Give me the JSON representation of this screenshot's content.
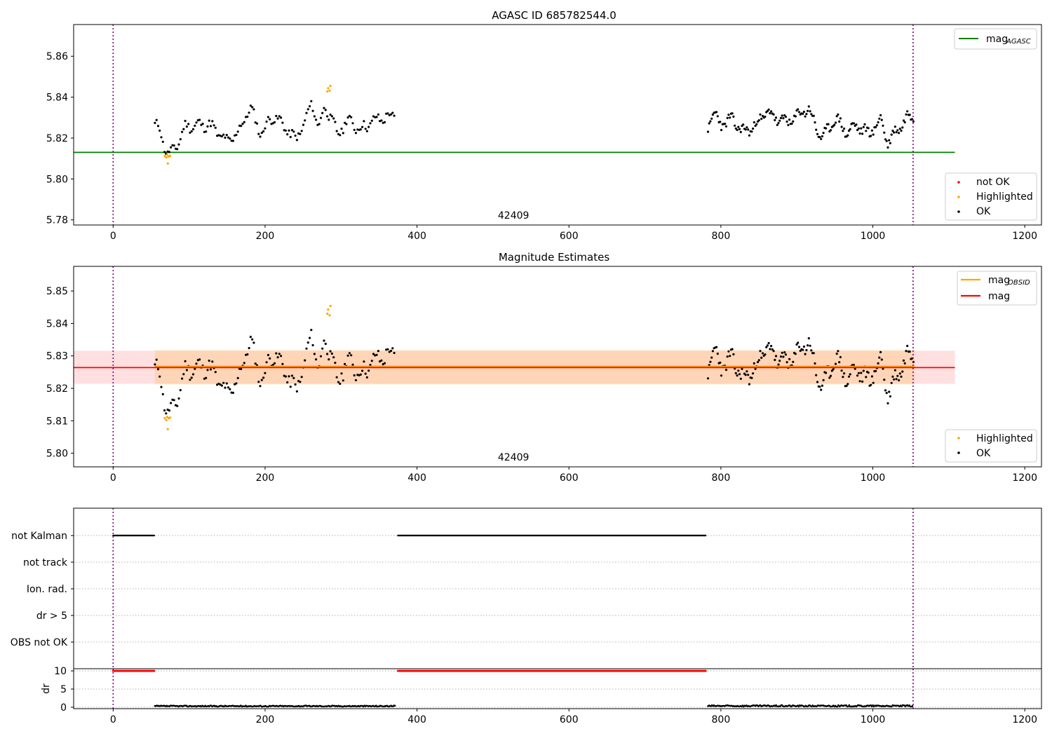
{
  "chart_data": [
    {
      "type": "scatter",
      "title": "AGASC ID 685782544.0",
      "xlim": [
        -52,
        1222
      ],
      "ylim": [
        5.7775,
        5.8755
      ],
      "xticks": [
        0,
        200,
        400,
        600,
        800,
        1000,
        1200
      ],
      "yticks": [
        5.78,
        5.8,
        5.82,
        5.84,
        5.86
      ],
      "ytick_labels": [
        "5.78",
        "5.80",
        "5.82",
        "5.84",
        "5.86"
      ],
      "vlines": [
        0,
        1053
      ],
      "obsid_label": {
        "text": "42409",
        "x": 527
      },
      "reference_line": {
        "name": "mag_AGASC",
        "y": 5.813,
        "x": [
          -52,
          1108
        ],
        "color": "#008000"
      },
      "series": [
        {
          "name": "not OK",
          "color": "#ff0000",
          "points": []
        },
        {
          "name": "Highlighted",
          "color": "#ffa500",
          "points": [
            [
              68,
              5.8112
            ],
            [
              70,
              5.8105
            ],
            [
              71,
              5.8119
            ],
            [
              72,
              5.8076
            ],
            [
              73,
              5.811
            ],
            [
              75,
              5.8113
            ],
            [
              282,
              5.8428
            ],
            [
              283,
              5.8444
            ],
            [
              285,
              5.8432
            ],
            [
              286,
              5.8455
            ]
          ]
        },
        {
          "name": "OK",
          "color": "#000000",
          "segments": [
            {
              "x_start": 55,
              "x_end": 372,
              "step": 2.1,
              "key": [
                [
                  55,
                  5.826
                ],
                [
                  62,
                  5.824
                ],
                [
                  66,
                  5.818
                ],
                [
                  72,
                  5.812
                ],
                [
                  80,
                  5.814
                ],
                [
                  88,
                  5.82
                ],
                [
                  96,
                  5.826
                ],
                [
                  110,
                  5.826
                ],
                [
                  125,
                  5.827
                ],
                [
                  140,
                  5.822
                ],
                [
                  150,
                  5.818
                ],
                [
                  165,
                  5.823
                ],
                [
                  180,
                  5.835
                ],
                [
                  195,
                  5.822
                ],
                [
                  210,
                  5.831
                ],
                [
                  225,
                  5.826
                ],
                [
                  240,
                  5.819
                ],
                [
                  255,
                  5.83
                ],
                [
                  262,
                  5.838
                ],
                [
                  270,
                  5.825
                ],
                [
                  280,
                  5.836
                ],
                [
                  295,
                  5.822
                ],
                [
                  310,
                  5.829
                ],
                [
                  325,
                  5.824
                ],
                [
                  340,
                  5.828
                ],
                [
                  355,
                  5.83
                ],
                [
                  372,
                  5.831
                ]
              ],
              "amp": 0.0025,
              "seed": 11
            },
            {
              "x_start": 783,
              "x_end": 1055,
              "step": 1.6,
              "key": [
                [
                  783,
                  5.826
                ],
                [
                  790,
                  5.832
                ],
                [
                  800,
                  5.827
                ],
                [
                  815,
                  5.829
                ],
                [
                  830,
                  5.823
                ],
                [
                  845,
                  5.826
                ],
                [
                  860,
                  5.833
                ],
                [
                  875,
                  5.829
                ],
                [
                  890,
                  5.828
                ],
                [
                  905,
                  5.832
                ],
                [
                  915,
                  5.835
                ],
                [
                  925,
                  5.825
                ],
                [
                  935,
                  5.82
                ],
                [
                  950,
                  5.83
                ],
                [
                  965,
                  5.823
                ],
                [
                  980,
                  5.826
                ],
                [
                  995,
                  5.822
                ],
                [
                  1010,
                  5.829
                ],
                [
                  1020,
                  5.818
                ],
                [
                  1030,
                  5.823
                ],
                [
                  1045,
                  5.83
                ],
                [
                  1055,
                  5.832
                ]
              ],
              "amp": 0.0026,
              "seed": 23
            }
          ]
        }
      ],
      "legend_lines": [
        {
          "label": "mag",
          "subscript": "AGASC",
          "color": "#008000"
        }
      ],
      "legend_points": [
        {
          "label": "not OK",
          "color": "#ff0000"
        },
        {
          "label": "Highlighted",
          "color": "#ffa500"
        },
        {
          "label": "OK",
          "color": "#000000"
        }
      ]
    },
    {
      "type": "scatter",
      "title": "Magnitude Estimates",
      "xlim": [
        -52,
        1222
      ],
      "ylim": [
        5.7958,
        5.8576
      ],
      "xticks": [
        0,
        200,
        400,
        600,
        800,
        1000,
        1200
      ],
      "yticks": [
        5.8,
        5.81,
        5.82,
        5.83,
        5.84,
        5.85
      ],
      "ytick_labels": [
        "5.80",
        "5.81",
        "5.82",
        "5.83",
        "5.84",
        "5.85"
      ],
      "vlines": [
        0,
        1053
      ],
      "obsid_label": {
        "text": "42409",
        "x": 527
      },
      "mag": {
        "name": "mag",
        "y": 5.8264,
        "band": [
          5.8214,
          5.8316
        ],
        "x": [
          -52,
          1108
        ],
        "color": "#ff0000"
      },
      "mag_obsid": {
        "name": "mag_OBSID",
        "y": 5.8265,
        "band": [
          5.8212,
          5.8318
        ],
        "x": [
          55,
          1055
        ],
        "color": "#ffa500"
      },
      "series": [
        {
          "name": "Highlighted",
          "color": "#ffa500",
          "points": [
            [
              68,
              5.8108
            ],
            [
              70,
              5.8102
            ],
            [
              71,
              5.8112
            ],
            [
              72,
              5.8074
            ],
            [
              73,
              5.8108
            ],
            [
              75,
              5.811
            ],
            [
              282,
              5.843
            ],
            [
              283,
              5.8443
            ],
            [
              285,
              5.8425
            ],
            [
              286,
              5.8454
            ]
          ]
        },
        {
          "name": "OK",
          "color": "#000000",
          "from_chart": 0
        }
      ],
      "legend_lines": [
        {
          "label": "mag",
          "subscript": "OBSID",
          "color": "#ffa500"
        },
        {
          "label": "mag",
          "subscript": "",
          "color": "#ff0000"
        }
      ],
      "legend_points": [
        {
          "label": "Highlighted",
          "color": "#ffa500"
        },
        {
          "label": "OK",
          "color": "#000000"
        }
      ]
    },
    {
      "type": "scatter",
      "xlim": [
        -52,
        1222
      ],
      "xticks": [
        0,
        200,
        400,
        600,
        800,
        1000,
        1200
      ],
      "vlines": [
        0,
        1053
      ],
      "flag_rows": [
        "not Kalman",
        "not track",
        "Ion. rad.",
        "dr > 5",
        "OBS not OK"
      ],
      "flag_segments": [
        {
          "row": "not Kalman",
          "x_start": 0,
          "x_end": 54,
          "step": 1.0
        },
        {
          "row": "not Kalman",
          "x_start": 375,
          "x_end": 780,
          "step": 1.0
        }
      ]
    },
    {
      "type": "scatter",
      "ylabel": "dr",
      "xlim": [
        -52,
        1222
      ],
      "ylim": [
        -0.4,
        10.6
      ],
      "xticks": [
        0,
        200,
        400,
        600,
        800,
        1000,
        1200
      ],
      "yticks": [
        0,
        5,
        10
      ],
      "ytick_labels": [
        "0",
        "5",
        "10"
      ],
      "vlines": [
        0,
        1053
      ],
      "clipped_segments": [
        {
          "x_start": 0,
          "x_end": 54,
          "y": 10,
          "step": 1.0,
          "color": "#ff0000"
        },
        {
          "x_start": 375,
          "x_end": 780,
          "y": 10,
          "step": 1.0,
          "color": "#ff0000"
        }
      ],
      "dr_segments": [
        {
          "x_start": 55,
          "x_end": 372,
          "step": 1.3,
          "base": 0.3,
          "amp": 0.15,
          "color": "#000000"
        },
        {
          "x_start": 783,
          "x_end": 1053,
          "step": 1.3,
          "base": 0.35,
          "amp": 0.2,
          "color": "#000000"
        }
      ]
    }
  ]
}
